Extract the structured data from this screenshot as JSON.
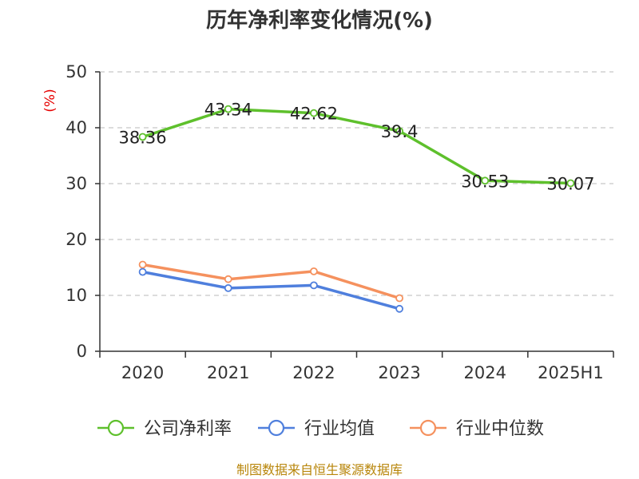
{
  "chart_data": {
    "type": "line",
    "title": "历年净利率变化情况(%)",
    "ylabel": "(%)",
    "ylim": [
      0,
      50
    ],
    "yticks": [
      0,
      10,
      20,
      30,
      40,
      50
    ],
    "categories": [
      "2020",
      "2021",
      "2022",
      "2023",
      "2024",
      "2025H1"
    ],
    "grid": "horizontal-dashed",
    "legend_position": "bottom",
    "series": [
      {
        "name": "公司净利率",
        "color": "#5ec02c",
        "values": [
          38.36,
          43.34,
          42.62,
          39.4,
          30.53,
          30.07
        ],
        "labels": [
          "38.36",
          "43.34",
          "42.62",
          "39.4",
          "30.53",
          "30.07"
        ]
      },
      {
        "name": "行业均值",
        "color": "#4f7fdd",
        "values": [
          14.2,
          11.3,
          11.8,
          7.6,
          null,
          null
        ]
      },
      {
        "name": "行业中位数",
        "color": "#f5915e",
        "values": [
          15.5,
          12.9,
          14.3,
          9.5,
          null,
          null
        ]
      }
    ],
    "source": "制图数据来自恒生聚源数据库"
  }
}
